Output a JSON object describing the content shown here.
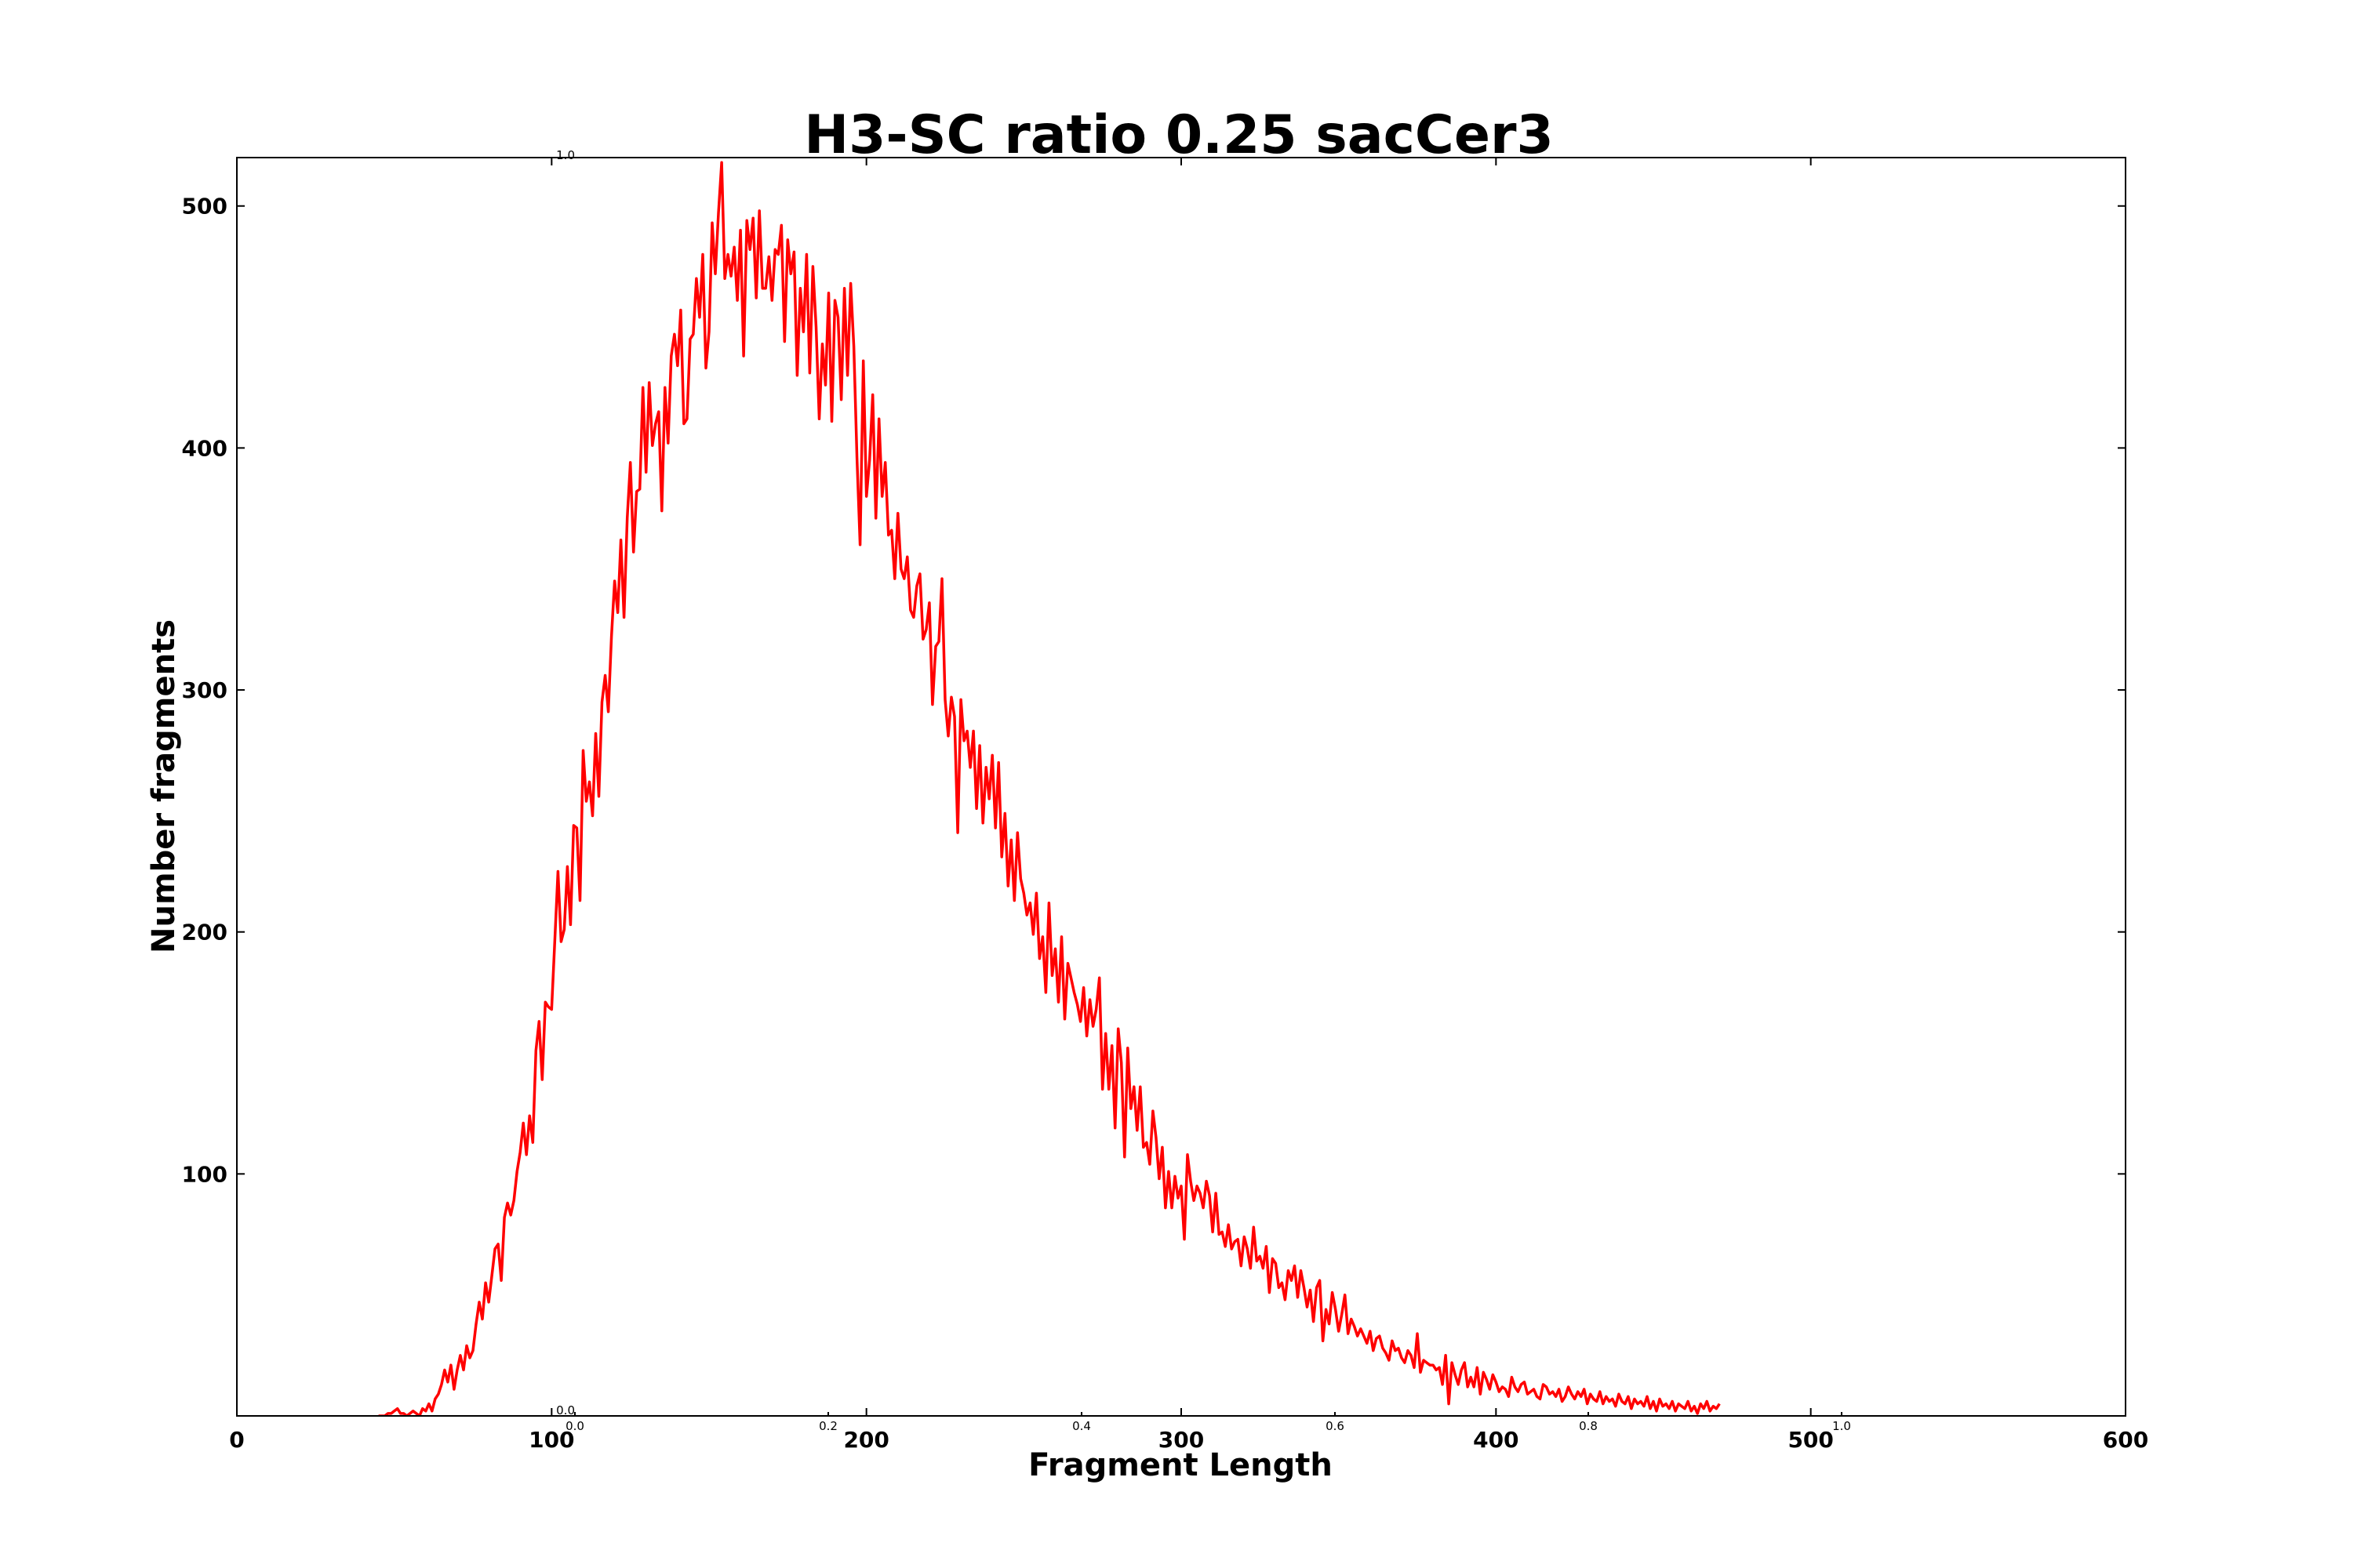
{
  "colors": {
    "series": "#ff0000",
    "axes": "#000000",
    "background": "#ffffff"
  },
  "ghost_axis": {
    "x_ticks": [
      "0.0",
      "0.2",
      "0.4",
      "0.6",
      "0.8",
      "1.0"
    ],
    "y_ticks": [
      "0.0",
      "1.0"
    ]
  },
  "chart_data": {
    "type": "line",
    "title": "H3-SC ratio 0.25 sacCer3",
    "xlabel": "Fragment Length",
    "ylabel": "Number fragments",
    "xlim": [
      0,
      600
    ],
    "ylim": [
      0,
      520
    ],
    "xticks": [
      0,
      100,
      200,
      300,
      400,
      500,
      600
    ],
    "yticks": [
      100,
      200,
      300,
      400,
      500
    ],
    "grid": false,
    "series": [
      {
        "x_start": 45,
        "x_step": 1,
        "values": [
          0,
          0,
          0,
          1,
          1,
          2,
          3,
          1,
          1,
          0,
          1,
          2,
          1,
          0,
          3,
          2,
          5,
          2,
          7,
          9,
          13,
          19,
          14,
          21,
          11,
          19,
          25,
          19,
          29,
          24,
          27,
          38,
          47,
          40,
          55,
          47,
          58,
          69,
          71,
          56,
          82,
          88,
          83,
          89,
          101,
          109,
          121,
          108,
          124,
          113,
          151,
          163,
          139,
          171,
          169,
          168,
          196,
          225,
          196,
          201,
          227,
          203,
          244,
          243,
          213,
          275,
          254,
          262,
          248,
          282,
          256,
          295,
          306,
          291,
          322,
          345,
          332,
          362,
          330,
          371,
          394,
          357,
          382,
          383,
          425,
          390,
          427,
          401,
          410,
          415,
          374,
          425,
          402,
          438,
          447,
          434,
          457,
          410,
          412,
          445,
          447,
          470,
          454,
          480,
          433,
          448,
          493,
          472,
          497,
          518,
          470,
          480,
          471,
          483,
          461,
          490,
          438,
          494,
          482,
          495,
          462,
          498,
          466,
          466,
          479,
          461,
          482,
          480,
          492,
          444,
          486,
          472,
          481,
          430,
          466,
          448,
          480,
          431,
          475,
          450,
          412,
          443,
          426,
          464,
          411,
          461,
          454,
          420,
          466,
          430,
          468,
          442,
          396,
          360,
          436,
          380,
          395,
          422,
          371,
          412,
          380,
          394,
          364,
          366,
          346,
          373,
          350,
          346,
          355,
          333,
          330,
          343,
          348,
          321,
          325,
          336,
          294,
          318,
          320,
          346,
          296,
          281,
          297,
          289,
          241,
          296,
          279,
          283,
          268,
          283,
          251,
          277,
          245,
          268,
          255,
          273,
          243,
          270,
          231,
          249,
          219,
          238,
          213,
          241,
          222,
          216,
          207,
          212,
          199,
          216,
          189,
          198,
          175,
          212,
          182,
          193,
          171,
          198,
          164,
          187,
          181,
          175,
          170,
          163,
          177,
          157,
          172,
          161,
          168,
          181,
          135,
          158,
          135,
          153,
          119,
          160,
          146,
          107,
          152,
          127,
          136,
          118,
          136,
          111,
          113,
          104,
          126,
          115,
          98,
          111,
          86,
          101,
          86,
          99,
          90,
          95,
          73,
          108,
          97,
          89,
          95,
          92,
          86,
          97,
          91,
          76,
          92,
          75,
          76,
          70,
          79,
          69,
          72,
          73,
          62,
          74,
          69,
          61,
          78,
          64,
          66,
          61,
          70,
          51,
          65,
          63,
          53,
          55,
          48,
          60,
          56,
          62,
          49,
          60,
          53,
          45,
          52,
          39,
          53,
          56,
          31,
          44,
          38,
          51,
          44,
          35,
          42,
          50,
          34,
          40,
          37,
          33,
          36,
          33,
          30,
          35,
          27,
          32,
          33,
          28,
          26,
          23,
          31,
          27,
          28,
          24,
          22,
          27,
          25,
          20,
          34,
          18,
          23,
          22,
          21,
          21,
          19,
          20,
          13,
          25,
          5,
          22,
          17,
          13,
          19,
          22,
          12,
          16,
          12,
          20,
          9,
          18,
          15,
          11,
          17,
          14,
          10,
          12,
          11,
          8,
          16,
          12,
          10,
          13,
          14,
          9,
          10,
          11,
          8,
          7,
          13,
          12,
          9,
          10,
          8,
          11,
          6,
          8,
          12,
          9,
          7,
          10,
          8,
          11,
          5,
          9,
          7,
          6,
          10,
          5,
          8,
          6,
          7,
          4,
          9,
          6,
          5,
          8,
          3,
          7,
          5,
          6,
          4,
          8,
          3,
          6,
          2,
          7,
          4,
          5,
          3,
          6,
          2,
          5,
          4,
          3,
          6,
          2,
          4,
          1,
          5,
          3,
          6,
          2,
          4,
          3,
          5
        ]
      }
    ]
  }
}
